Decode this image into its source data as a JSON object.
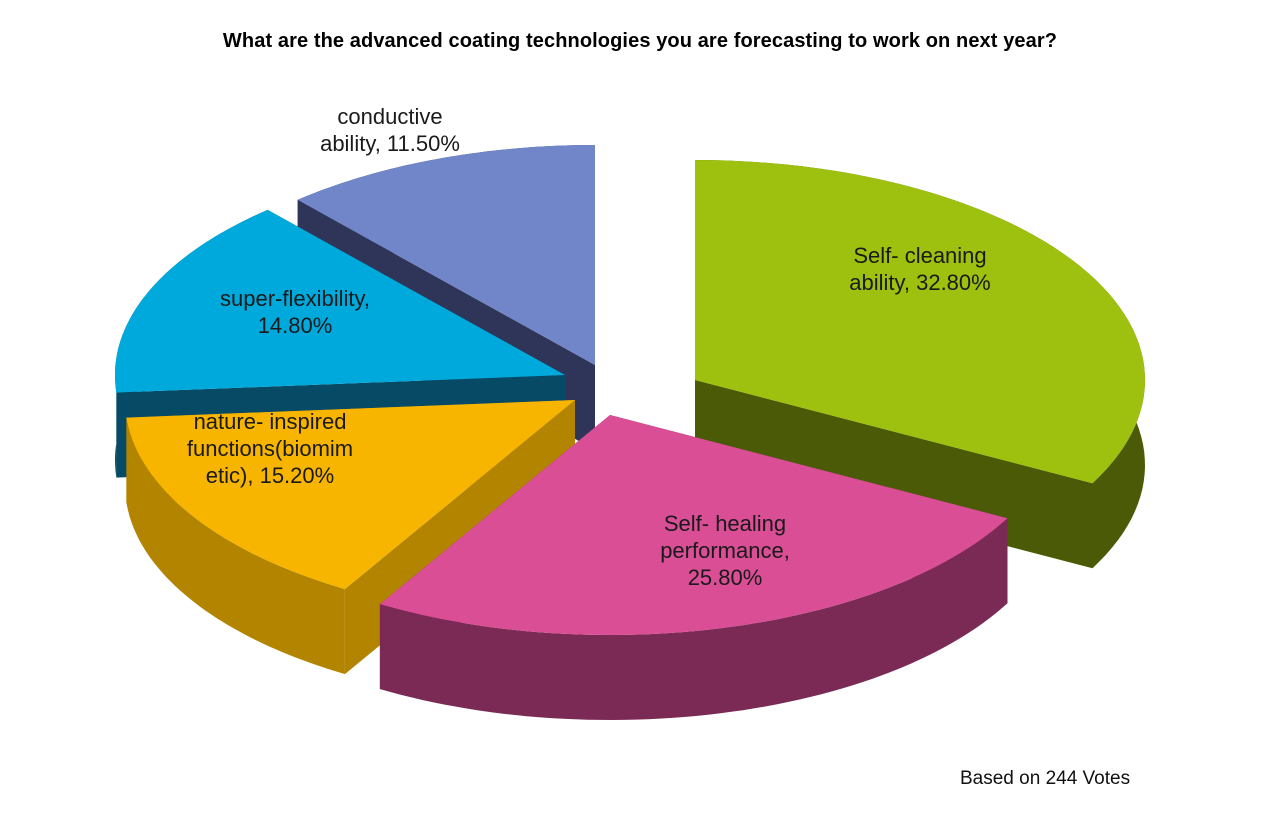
{
  "chart_data": {
    "type": "pie",
    "style": "3d-exploded",
    "title": "What are the advanced coating technologies you are forecasting to work on next year?",
    "slices": [
      {
        "label": "Self- cleaning\nability, 32.80%",
        "value": 32.8,
        "color": "#9DC10E",
        "side_color": "#4A5A06"
      },
      {
        "label": "Self- healing\nperformance,\n25.80%",
        "value": 25.8,
        "color": "#D94E95",
        "side_color": "#7A2A55"
      },
      {
        "label": "nature- inspired\nfunctions(biomim\netic), 15.20%",
        "value": 15.2,
        "color": "#F7B500",
        "side_color": "#B38400"
      },
      {
        "label": "super-flexibility,\n14.80%",
        "value": 14.8,
        "color": "#00A9DC",
        "side_color": "#064A66"
      },
      {
        "label": "conductive\nability, 11.50%",
        "value": 11.5,
        "color": "#7186C9",
        "side_color": "#2E3558"
      }
    ],
    "legend": "none",
    "footnote": "Based on 244 Votes"
  }
}
